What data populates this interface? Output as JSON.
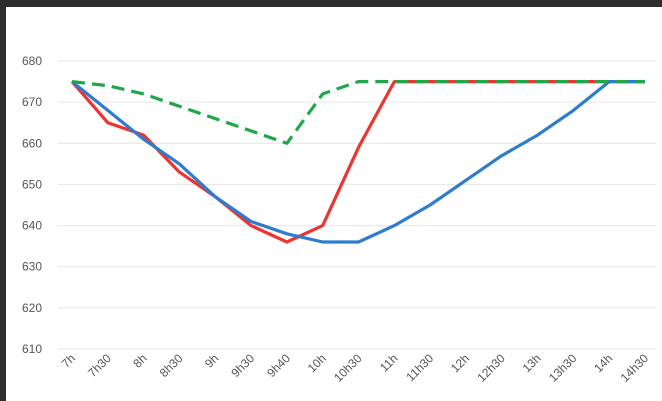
{
  "chart_data": {
    "type": "line",
    "title": "",
    "xlabel": "",
    "ylabel": "",
    "categories": [
      "7h",
      "7h30",
      "8h",
      "8h30",
      "9h",
      "9h30",
      "9h40",
      "10h",
      "10h30",
      "11h",
      "11h30",
      "12h",
      "12h30",
      "13h",
      "13h30",
      "14h",
      "14h30"
    ],
    "ylim": [
      610,
      680
    ],
    "yticks": [
      610,
      620,
      630,
      640,
      650,
      660,
      670,
      680
    ],
    "grid": true,
    "legend": "none",
    "series": [
      {
        "color": "#ee3333",
        "style": "solid",
        "values": [
          675,
          665,
          662,
          653,
          647,
          640,
          636,
          640,
          659,
          675,
          675,
          675,
          675,
          675,
          675,
          675,
          675
        ]
      },
      {
        "color": "#2f7ccf",
        "style": "solid",
        "values": [
          675,
          668,
          661,
          655,
          647,
          641,
          638,
          636,
          636,
          640,
          645,
          651,
          657,
          662,
          668,
          675,
          675
        ]
      },
      {
        "color": "#22a64a",
        "style": "dashed",
        "values": [
          675,
          674,
          672,
          669,
          666,
          663,
          660,
          672,
          675,
          675,
          675,
          675,
          675,
          675,
          675,
          675,
          675
        ]
      }
    ]
  }
}
